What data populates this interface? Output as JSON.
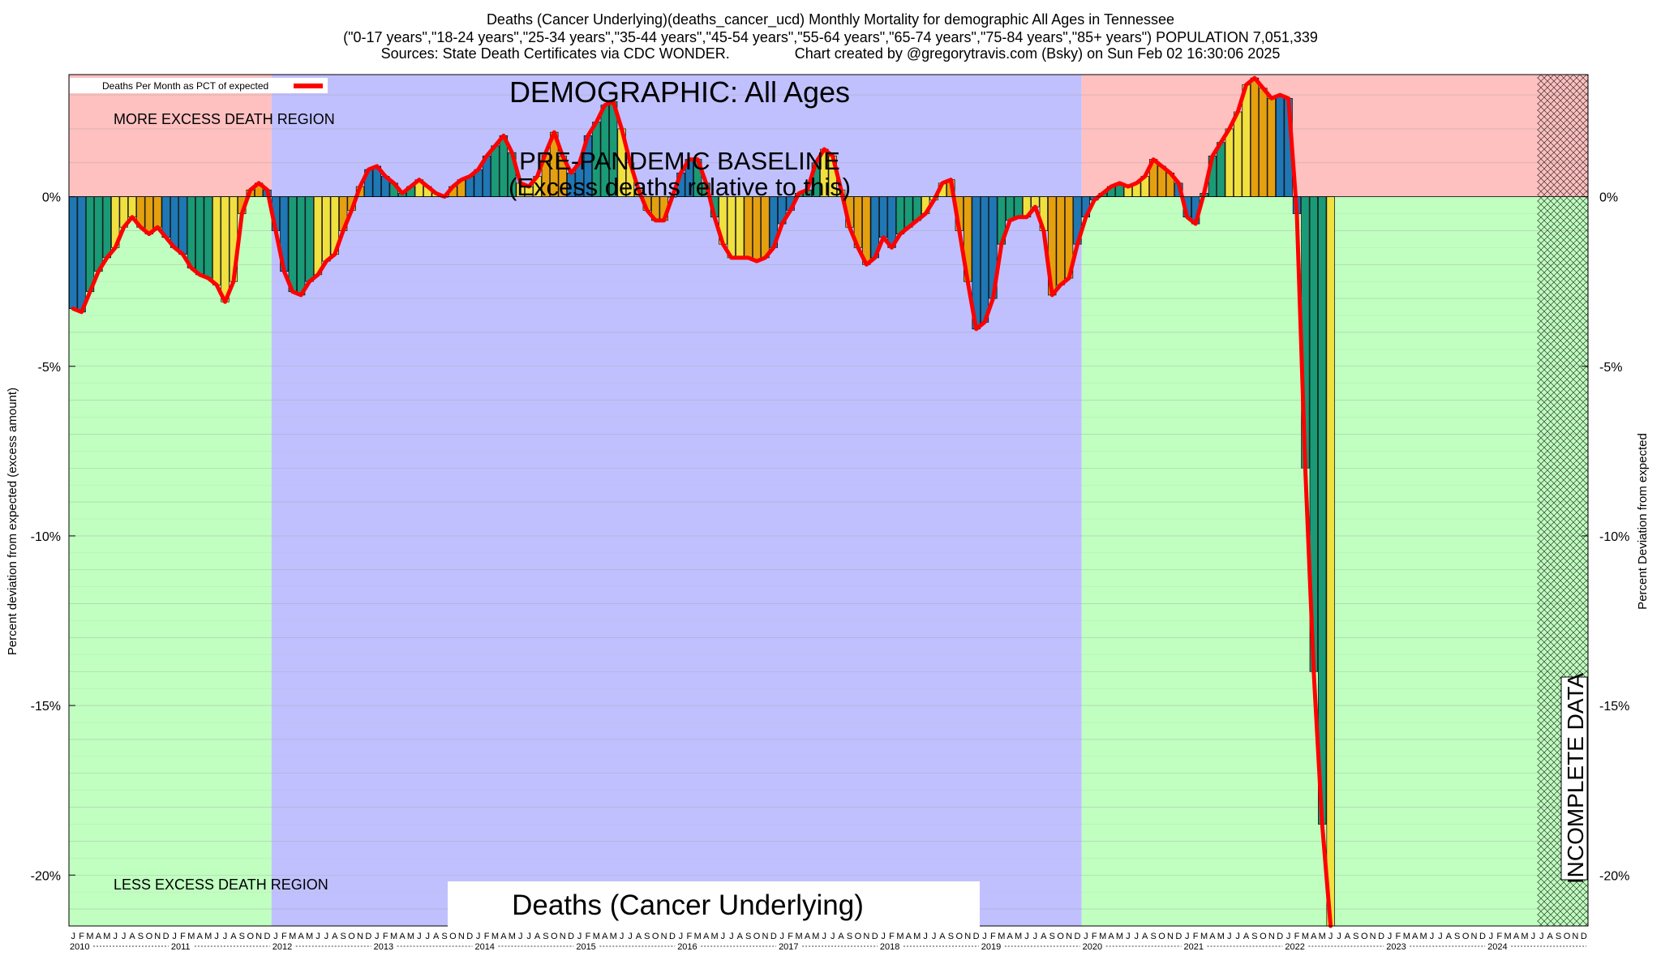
{
  "title": {
    "line1": "Deaths (Cancer Underlying)(deaths_cancer_ucd) Monthly Mortality for demographic All Ages in Tennessee",
    "line2": "(\"0-17 years\",\"18-24 years\",\"25-34 years\",\"35-44 years\",\"45-54 years\",\"55-64 years\",\"65-74 years\",\"75-84 years\",\"85+ years\") POPULATION 7,051,339",
    "line3": "Sources: State Death Certificates via CDC WONDER.                Chart created by @gregorytravis.com (Bsky) on Sun Feb 02 16:30:06 2025"
  },
  "labels": {
    "demographic": "DEMOGRAPHIC: All Ages",
    "baseline_line1": "PRE-PANDEMIC BASELINE",
    "baseline_line2": "(Excess deaths relative to this)",
    "more_excess": "MORE EXCESS DEATH REGION",
    "less_excess": "LESS EXCESS DEATH REGION",
    "bottom_title": "Deaths (Cancer Underlying)",
    "incomplete": "INCOMPLETE DATA",
    "legend": "Deaths Per Month as PCT of expected",
    "ylabel_left": "Percent deviation from expected (excess amount)",
    "ylabel_right": "Percent Deviation from expected"
  },
  "colors": {
    "excess_region": "#ffc0c0",
    "less_region": "#c0ffc0",
    "baseline_region": "#c0c0ff",
    "line": "#ff0000",
    "bar_winter": "#1f77b4",
    "bar_spring": "#1a9a76",
    "bar_summer": "#f0e040",
    "bar_fall": "#e5a010"
  },
  "chart_data": {
    "type": "bar",
    "y_unit": "percent deviation from expected",
    "ylim": [
      -21.5,
      3.6
    ],
    "yticks": [
      0,
      -5,
      -10,
      -15,
      -20
    ],
    "ytick_labels": [
      "0%",
      "-5%",
      "-10%",
      "-15%",
      "-20%"
    ],
    "month_letters": [
      "J",
      "F",
      "M",
      "A",
      "M",
      "J",
      "J",
      "A",
      "S",
      "O",
      "N",
      "D"
    ],
    "years": [
      "2010",
      "2011",
      "2012",
      "2013",
      "2014",
      "2015",
      "2016",
      "2017",
      "2018",
      "2019",
      "2020",
      "2021",
      "2022",
      "2023",
      "2024"
    ],
    "start": "2010-01",
    "baseline_period": [
      "2012-01",
      "2019-12"
    ],
    "incomplete_from": "2024-07",
    "series": [
      {
        "name": "Deaths Per Month as PCT of expected",
        "values": [
          -3.3,
          -3.4,
          -2.8,
          -2.2,
          -1.8,
          -1.5,
          -0.9,
          -0.6,
          -0.9,
          -1.1,
          -0.9,
          -1.2,
          -1.5,
          -1.7,
          -2.1,
          -2.3,
          -2.4,
          -2.6,
          -3.1,
          -2.5,
          -0.5,
          0.2,
          0.4,
          0.2,
          -1.0,
          -2.2,
          -2.8,
          -2.9,
          -2.5,
          -2.3,
          -1.9,
          -1.7,
          -1.0,
          -0.4,
          0.3,
          0.8,
          0.9,
          0.6,
          0.4,
          0.1,
          0.3,
          0.5,
          0.3,
          0.1,
          0.0,
          0.3,
          0.5,
          0.6,
          0.8,
          1.2,
          1.5,
          1.8,
          1.3,
          0.4,
          0.3,
          0.6,
          1.3,
          1.9,
          1.2,
          0.7,
          1.0,
          1.8,
          2.2,
          2.7,
          2.8,
          2.0,
          1.0,
          0.2,
          -0.4,
          -0.7,
          -0.7,
          0.0,
          0.7,
          1.1,
          1.1,
          0.4,
          -0.6,
          -1.4,
          -1.8,
          -1.8,
          -1.8,
          -1.9,
          -1.8,
          -1.5,
          -0.8,
          -0.4,
          0.1,
          0.2,
          1.0,
          1.4,
          1.2,
          0.2,
          -0.9,
          -1.5,
          -2.0,
          -1.8,
          -1.2,
          -1.5,
          -1.1,
          -0.9,
          -0.7,
          -0.5,
          -0.1,
          0.4,
          0.5,
          -1.0,
          -2.5,
          -3.9,
          -3.7,
          -3.0,
          -1.4,
          -0.7,
          -0.6,
          -0.6,
          -0.3,
          -1.0,
          -2.9,
          -2.6,
          -2.4,
          -1.4,
          -0.6,
          -0.1,
          0.1,
          0.3,
          0.4,
          0.3,
          0.4,
          0.6,
          1.1,
          0.9,
          0.7,
          0.4,
          -0.6,
          -0.8,
          0.1,
          1.2,
          1.6,
          2.0,
          2.5,
          3.3,
          3.5,
          3.2,
          2.9,
          3.0,
          2.9,
          -0.5,
          -8.0,
          -14.0,
          -18.5,
          -21.5
        ]
      }
    ]
  }
}
